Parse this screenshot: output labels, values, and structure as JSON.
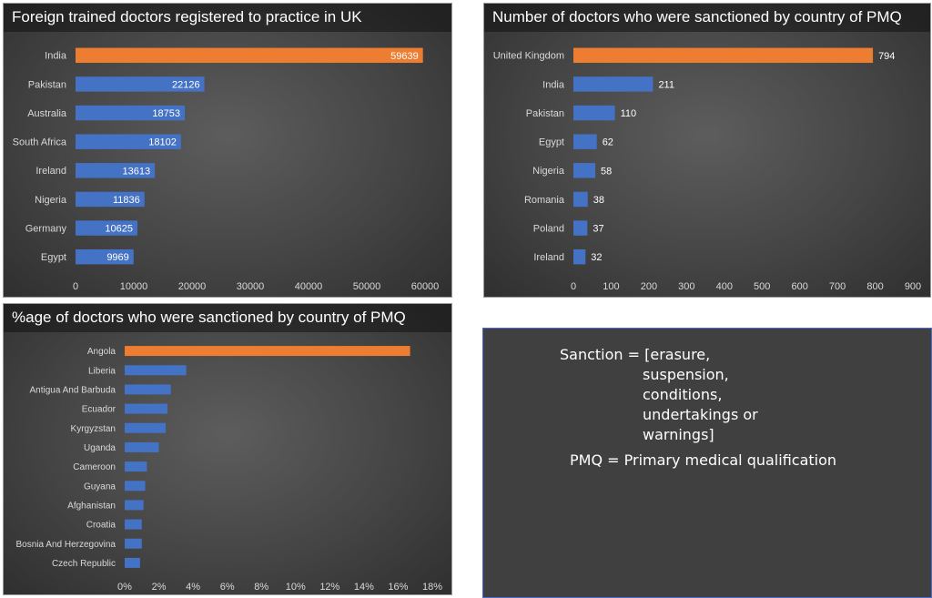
{
  "colors": {
    "highlight": "#ed7d31",
    "bar": "#4472c4",
    "text": "#ffffff",
    "axis_text": "#d9d9d9"
  },
  "chart_data": [
    {
      "type": "bar",
      "orientation": "horizontal",
      "title": "Foreign trained doctors registered to practice in UK",
      "categories": [
        "India",
        "Pakistan",
        "Australia",
        "South Africa",
        "Ireland",
        "Nigeria",
        "Germany",
        "Egypt"
      ],
      "values": [
        59639,
        22126,
        18753,
        18102,
        13613,
        11836,
        10625,
        9969
      ],
      "data_labels": true,
      "data_label_position": "inside-end",
      "highlight_index": 0,
      "xlim": [
        0,
        60000
      ],
      "xticks": [
        0,
        10000,
        20000,
        30000,
        40000,
        50000,
        60000
      ],
      "xtick_labels": [
        "0",
        "10000",
        "20000",
        "30000",
        "40000",
        "50000",
        "60000"
      ],
      "grid": false
    },
    {
      "type": "bar",
      "orientation": "horizontal",
      "title": "Number of doctors who were sanctioned by country of PMQ",
      "categories": [
        "United Kingdom",
        "India",
        "Pakistan",
        "Egypt",
        "Nigeria",
        "Romania",
        "Poland",
        "Ireland"
      ],
      "values": [
        794,
        211,
        110,
        62,
        58,
        38,
        37,
        32
      ],
      "data_labels": true,
      "data_label_position": "outside-end",
      "highlight_index": 0,
      "xlim": [
        0,
        900
      ],
      "xticks": [
        0,
        100,
        200,
        300,
        400,
        500,
        600,
        700,
        800,
        900
      ],
      "xtick_labels": [
        "0",
        "100",
        "200",
        "300",
        "400",
        "500",
        "600",
        "700",
        "800",
        "900"
      ],
      "grid": false
    },
    {
      "type": "bar",
      "orientation": "horizontal",
      "title": "%age of doctors who were sanctioned by country of PMQ",
      "categories": [
        "Angola",
        "Liberia",
        "Antigua And Barbuda",
        "Ecuador",
        "Kyrgyzstan",
        "Uganda",
        "Cameroon",
        "Guyana",
        "Afghanistan",
        "Croatia",
        "Bosnia And Herzegovina",
        "Czech Republic"
      ],
      "values": [
        16.7,
        3.6,
        2.7,
        2.5,
        2.4,
        2.0,
        1.3,
        1.2,
        1.1,
        1.0,
        1.0,
        0.9
      ],
      "data_labels": false,
      "highlight_index": 0,
      "xlim": [
        0,
        18
      ],
      "xticks": [
        0,
        2,
        4,
        6,
        8,
        10,
        12,
        14,
        16,
        18
      ],
      "xtick_labels": [
        "0%",
        "2%",
        "4%",
        "6%",
        "8%",
        "10%",
        "12%",
        "14%",
        "16%",
        "18%"
      ],
      "grid": false
    }
  ],
  "notes": {
    "sanction_lines": [
      "Sanction = [erasure,",
      "suspension,",
      "conditions,",
      "undertakings or",
      "warnings]"
    ],
    "pmq": "PMQ = Primary medical qualification"
  }
}
